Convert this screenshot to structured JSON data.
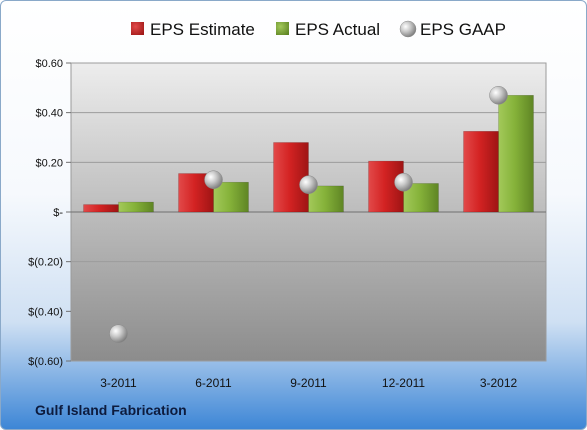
{
  "chart_data": {
    "type": "bar",
    "title": "",
    "xlabel": "",
    "ylabel": "",
    "categories": [
      "3-2011",
      "6-2011",
      "9-2011",
      "12-2011",
      "3-2012"
    ],
    "series": [
      {
        "name": "EPS Estimate",
        "kind": "bar",
        "color": "#d42323",
        "values": [
          0.03,
          0.155,
          0.28,
          0.205,
          0.325
        ]
      },
      {
        "name": "EPS Actual",
        "kind": "bar",
        "color": "#86b33a",
        "values": [
          0.04,
          0.12,
          0.105,
          0.115,
          0.47
        ]
      },
      {
        "name": "EPS GAAP",
        "kind": "marker",
        "color": "#b9b9b9",
        "values": [
          -0.49,
          0.13,
          0.11,
          0.12,
          0.47
        ]
      }
    ],
    "ylim": [
      -0.6,
      0.6
    ],
    "yticks": [
      0.6,
      0.4,
      0.2,
      0,
      -0.2,
      -0.4,
      -0.6
    ],
    "ytick_labels": [
      "$0.60",
      "$0.40",
      "$0.20",
      "$-",
      "$(0.20)",
      "$(0.40)",
      "$(0.60)"
    ],
    "grid": true,
    "legend_position": "top"
  },
  "company": "Gulf Island Fabrication"
}
